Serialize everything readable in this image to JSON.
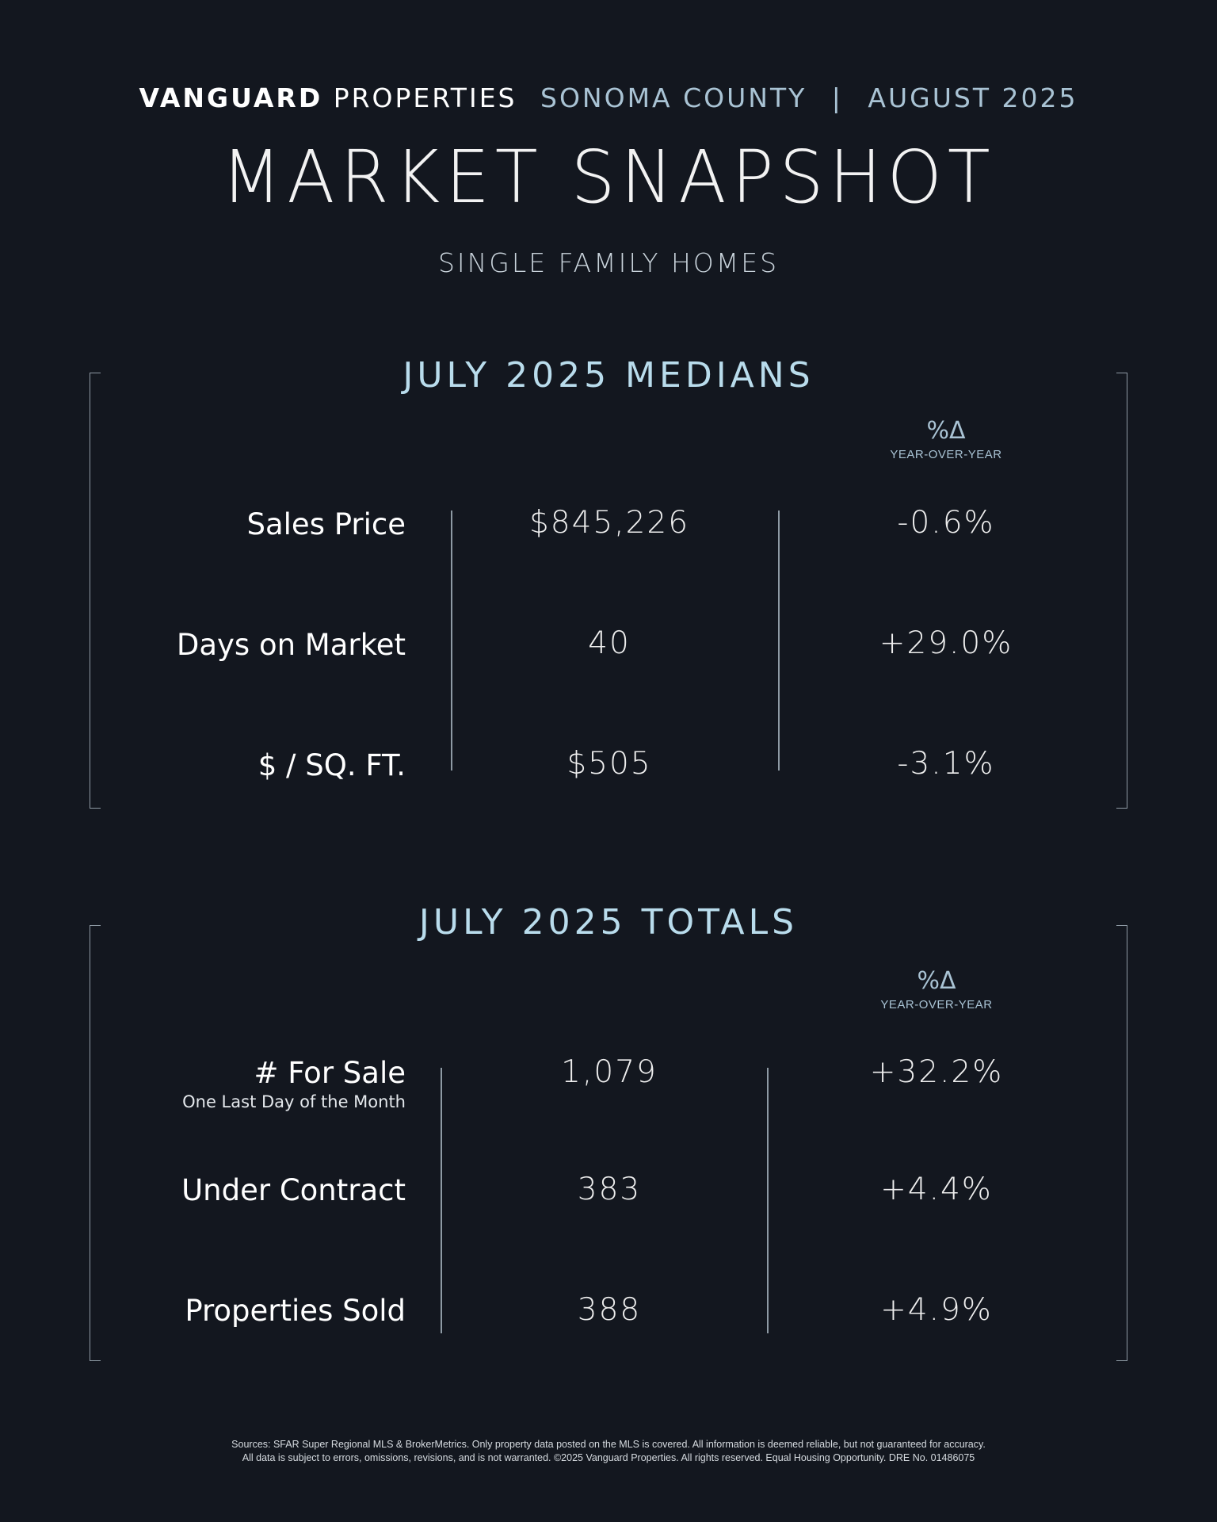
{
  "header": {
    "brand_bold": "VANGUARD",
    "brand_light": "PROPERTIES",
    "location": "SONOMA COUNTY",
    "separator": "|",
    "date": "AUGUST 2025"
  },
  "title": "MARKET SNAPSHOT",
  "subtitle": "SINGLE FAMILY HOMES",
  "medians": {
    "title": "JULY 2025 MEDIANS",
    "yoy_symbol": "%Δ",
    "yoy_label": "YEAR-OVER-YEAR",
    "rows": [
      {
        "label": "Sales Price",
        "value": "$845,226",
        "change": "-0.6%"
      },
      {
        "label": "Days on Market",
        "value": "40",
        "change": "+29.0%"
      },
      {
        "label": "$ / SQ. FT.",
        "value": "$505",
        "change": "-3.1%"
      }
    ]
  },
  "totals": {
    "title": "JULY 2025 TOTALS",
    "yoy_symbol": "%Δ",
    "yoy_label": "YEAR-OVER-YEAR",
    "rows": [
      {
        "label": "# For Sale",
        "sublabel": "One Last Day of the Month",
        "value": "1,079",
        "change": "+32.2%"
      },
      {
        "label": "Under Contract",
        "value": "383",
        "change": "+4.4%"
      },
      {
        "label": "Properties Sold",
        "value": "388",
        "change": "+4.9%"
      }
    ]
  },
  "footer": {
    "line1": "Sources: SFAR Super Regional MLS & BrokerMetrics. Only property data posted on the MLS is covered. All information is deemed reliable, but not guaranteed for accuracy.",
    "line2": "All data is subject to errors, omissions, revisions, and is not warranted. ©2025 Vanguard Properties. All rights reserved. Equal Housing Opportunity. DRE No. 01486075"
  },
  "colors": {
    "background": "#13171f",
    "accent": "#b9dcec",
    "rule": "#8e9aa4"
  }
}
